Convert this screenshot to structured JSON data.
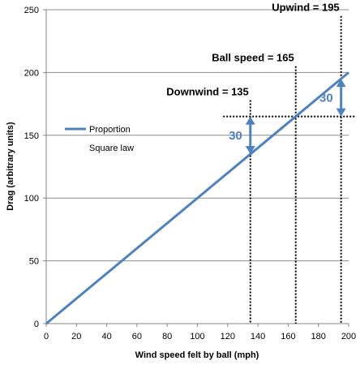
{
  "chart_data": {
    "type": "line",
    "xlabel": "Wind speed felt by ball (mph)",
    "ylabel": "Drag (arbitrary units)",
    "xlim": [
      0,
      200
    ],
    "ylim": [
      0,
      250
    ],
    "x_ticks": [
      "0",
      "20",
      "40",
      "60",
      "80",
      "100",
      "120",
      "140",
      "160",
      "180",
      "200"
    ],
    "y_ticks": [
      "0",
      "50",
      "100",
      "150",
      "200",
      "250"
    ],
    "grid": "horizontal",
    "series": [
      {
        "name": "Proportion",
        "x": [
          0,
          200
        ],
        "y": [
          0,
          200
        ],
        "color": "#4f81bd"
      },
      {
        "name": "Square law",
        "x": [],
        "y": [],
        "color": ""
      }
    ],
    "legend_position": "left",
    "reference_lines": {
      "vertical": [
        {
          "x": 135,
          "y_top": 178
        },
        {
          "x": 165,
          "y_top": 205
        },
        {
          "x": 195,
          "y_top": 245
        }
      ],
      "horizontal": [
        {
          "y": 165,
          "x_from": 117,
          "x_to": 200
        }
      ]
    },
    "annotations": [
      {
        "text": "Downwind = 135",
        "x": 135
      },
      {
        "text": "Ball speed = 165",
        "x": 165
      },
      {
        "text": "Upwind = 195",
        "x": 195
      }
    ],
    "difference_arrows": [
      {
        "label": "30",
        "x": 135,
        "from": 135,
        "to": 165
      },
      {
        "label": "30",
        "x": 195,
        "from": 165,
        "to": 195
      }
    ]
  }
}
